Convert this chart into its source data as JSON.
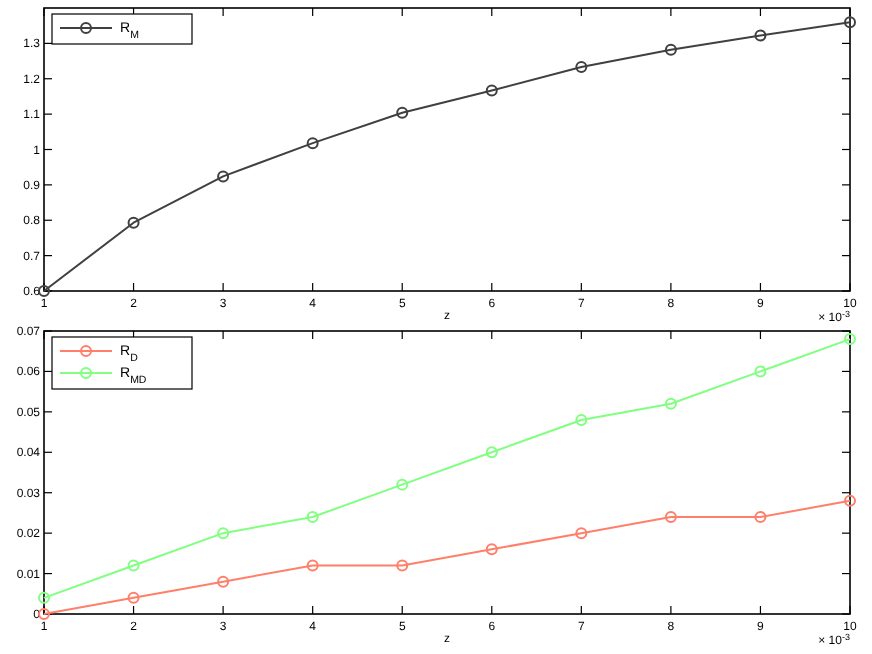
{
  "chart_data": [
    {
      "type": "line",
      "xlabel": "z",
      "x": [
        1,
        2,
        3,
        4,
        5,
        6,
        7,
        8,
        9,
        10
      ],
      "xlim": [
        1,
        10
      ],
      "xticks": [
        1,
        2,
        3,
        4,
        5,
        6,
        7,
        8,
        9,
        10
      ],
      "ylim": [
        0.6,
        1.4
      ],
      "yticks": [
        0.6,
        0.7,
        0.8,
        0.9,
        1,
        1.1,
        1.2,
        1.3
      ],
      "marker": "circle",
      "legend": "top left",
      "annotations": [
        "× 10$^{-3}$"
      ],
      "series": [
        {
          "name": "R$_{M}$",
          "color": "#404040",
          "values": [
            0.6,
            0.793,
            0.924,
            1.018,
            1.104,
            1.167,
            1.233,
            1.282,
            1.322,
            1.36
          ]
        }
      ]
    },
    {
      "type": "line",
      "xlabel": "z",
      "x": [
        1,
        2,
        3,
        4,
        5,
        6,
        7,
        8,
        9,
        10
      ],
      "xlim": [
        1,
        10
      ],
      "xticks": [
        1,
        2,
        3,
        4,
        5,
        6,
        7,
        8,
        9,
        10
      ],
      "ylim": [
        0,
        0.07
      ],
      "yticks": [
        0,
        0.01,
        0.02,
        0.03,
        0.04,
        0.05,
        0.06,
        0.07
      ],
      "marker": "circle",
      "legend": "top left",
      "annotations": [
        "× 10$^{-3}$"
      ],
      "series": [
        {
          "name": "R$_{D}$",
          "color": "#ff7f6a",
          "values": [
            0,
            0.004,
            0.008,
            0.012,
            0.012,
            0.016,
            0.02,
            0.024,
            0.024,
            0.028
          ]
        },
        {
          "name": "R$_{MD}$",
          "color": "#80ff80",
          "values": [
            0.004,
            0.012,
            0.02,
            0.024,
            0.032,
            0.04,
            0.048,
            0.052,
            0.06,
            0.068
          ]
        }
      ]
    }
  ]
}
